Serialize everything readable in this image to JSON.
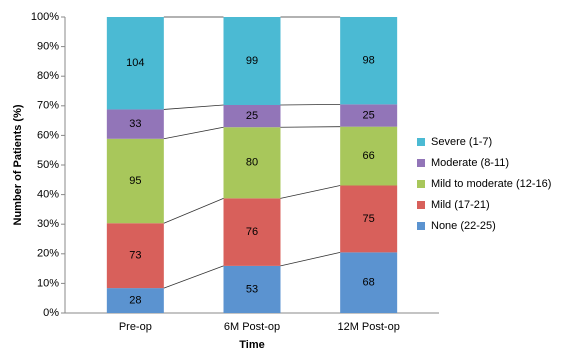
{
  "chart_data": {
    "type": "bar",
    "stacking": "percent",
    "x_label": "Time",
    "y_label": "Number of Patients (%)",
    "categories": [
      "Pre-op",
      "6M Post-op",
      "12M Post-op"
    ],
    "series": [
      {
        "name": "None (22-25)",
        "color": "#5b93d0",
        "values": [
          28,
          53,
          68
        ]
      },
      {
        "name": "Mild (17-21)",
        "color": "#d8605b",
        "values": [
          73,
          76,
          75
        ]
      },
      {
        "name": "Mild to moderate (12-16)",
        "color": "#a8c75b",
        "values": [
          95,
          80,
          66
        ]
      },
      {
        "name": "Moderate (8-11)",
        "color": "#9275b8",
        "values": [
          33,
          25,
          25
        ]
      },
      {
        "name": "Severe (1-7)",
        "color": "#4bbad3",
        "values": [
          104,
          99,
          98
        ]
      }
    ],
    "ylim": [
      0,
      100
    ],
    "yticks": [
      {
        "value": 0,
        "label": "0%"
      },
      {
        "value": 10,
        "label": "10%"
      },
      {
        "value": 20,
        "label": "20%"
      },
      {
        "value": 30,
        "label": "30%"
      },
      {
        "value": 40,
        "label": "40%"
      },
      {
        "value": 50,
        "label": "50%"
      },
      {
        "value": 60,
        "label": "60%"
      },
      {
        "value": 70,
        "label": "70%"
      },
      {
        "value": 80,
        "label": "80%"
      },
      {
        "value": 90,
        "label": "90%"
      },
      {
        "value": 100,
        "label": "100%"
      }
    ],
    "series_lines": true
  }
}
